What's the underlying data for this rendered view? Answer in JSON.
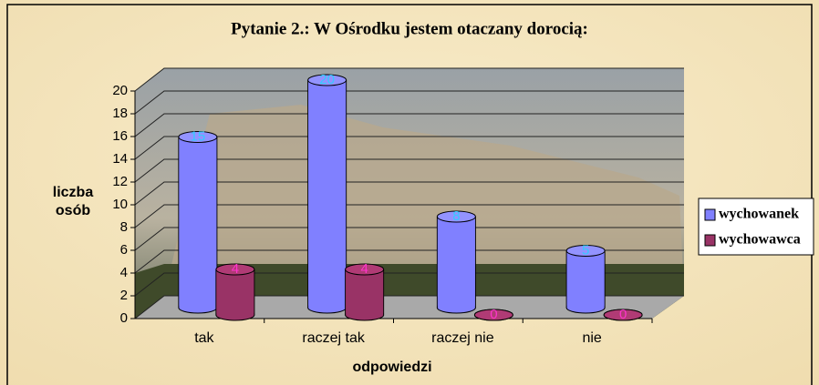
{
  "chart_data": {
    "type": "bar3d",
    "title": "Pytanie 2.: W Ośrodku jestem otaczany dorocią:",
    "x_label": "odpowiedzi",
    "y_label": "liczba osób",
    "categories": [
      "tak",
      "raczej tak",
      "raczej nie",
      "nie"
    ],
    "series": [
      {
        "name": "wychowanek",
        "color": "#8080ff",
        "label_color": "#33ccff",
        "values": [
          15,
          20,
          8,
          5
        ]
      },
      {
        "name": "wychowawca",
        "color": "#993366",
        "label_color": "#ff33cc",
        "values": [
          4,
          4,
          0,
          0
        ]
      }
    ],
    "ylim": [
      0,
      20
    ],
    "yticks": [
      0,
      2,
      4,
      6,
      8,
      10,
      12,
      14,
      16,
      18,
      20
    ],
    "grid": true,
    "legend": "right"
  }
}
